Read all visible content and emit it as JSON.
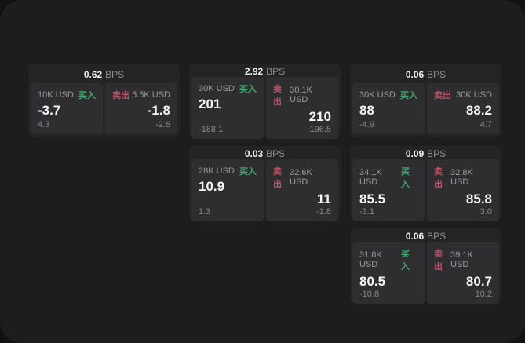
{
  "colors": {
    "buy_green": "#3fa972",
    "sell_red": "#bf5068",
    "page_bg": "#1d1d1e",
    "card_bg": "#242425",
    "panel_bg": "#2e2e30"
  },
  "labels": {
    "buy": "买入",
    "sell": "卖出",
    "bps_unit": "BPS"
  },
  "cards": [
    {
      "bps_value": "0.62",
      "bps_unit": "BPS",
      "buy": {
        "size": "10K USD",
        "action": "买入",
        "price": "-3.7",
        "change": "4.3"
      },
      "sell": {
        "size": "5.5K USD",
        "action": "卖出",
        "price": "-1.8",
        "change": "-2.6"
      }
    },
    {
      "bps_value": "2.92",
      "bps_unit": "BPS",
      "buy": {
        "size": "30K USD",
        "action": "买入",
        "price": "201",
        "change": "-188.1"
      },
      "sell": {
        "size": "30.1K USD",
        "action": "卖出",
        "price": "210",
        "change": "196.5"
      }
    },
    {
      "bps_value": "0.06",
      "bps_unit": "BPS",
      "buy": {
        "size": "30K USD",
        "action": "买入",
        "price": "88",
        "change": "-4.9"
      },
      "sell": {
        "size": "30K USD",
        "action": "卖出",
        "price": "88.2",
        "change": "4.7"
      }
    },
    {
      "bps_value": "0.03",
      "bps_unit": "BPS",
      "buy": {
        "size": "28K USD",
        "action": "买入",
        "price": "10.9",
        "change": "1.3"
      },
      "sell": {
        "size": "32.6K USD",
        "action": "卖出",
        "price": "11",
        "change": "-1.8"
      }
    },
    {
      "bps_value": "0.09",
      "bps_unit": "BPS",
      "buy": {
        "size": "34.1K USD",
        "action": "买入",
        "price": "85.5",
        "change": "-3.1"
      },
      "sell": {
        "size": "32.8K USD",
        "action": "卖出",
        "price": "85.8",
        "change": "3.0"
      }
    },
    {
      "bps_value": "0.06",
      "bps_unit": "BPS",
      "buy": {
        "size": "31.8K USD",
        "action": "买入",
        "price": "80.5",
        "change": "-10.8"
      },
      "sell": {
        "size": "39.1K USD",
        "action": "卖出",
        "price": "80.7",
        "change": "10.2"
      }
    }
  ]
}
